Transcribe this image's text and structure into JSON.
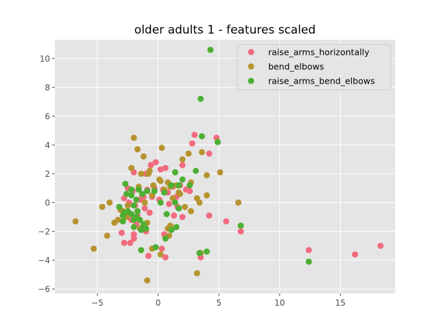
{
  "chart_data": {
    "type": "scatter",
    "title": "older adults 1 - features scaled",
    "xlabel": "",
    "ylabel": "",
    "xlim": [
      -8.5,
      19.5
    ],
    "ylim": [
      -6.3,
      11.3
    ],
    "xticks": [
      -5,
      0,
      5,
      10,
      15
    ],
    "yticks": [
      -6,
      -4,
      -2,
      0,
      2,
      4,
      6,
      8,
      10
    ],
    "xtick_labels": [
      "−5",
      "0",
      "5",
      "10",
      "15"
    ],
    "ytick_labels": [
      "−6",
      "−4",
      "−2",
      "0",
      "2",
      "4",
      "6",
      "8",
      "10"
    ],
    "grid": true,
    "legend_position": "top-right",
    "series": [
      {
        "name": "raise_arms_horizontally",
        "color": "#f26b7e",
        "points": [
          [
            -2.0,
            2.1
          ],
          [
            -1.0,
            2.0
          ],
          [
            -0.6,
            2.6
          ],
          [
            -0.2,
            2.8
          ],
          [
            0.2,
            2.3
          ],
          [
            0.6,
            2.4
          ],
          [
            -2.5,
            1.0
          ],
          [
            -2.1,
            0.8
          ],
          [
            -1.6,
            1.0
          ],
          [
            -1.3,
            0.5
          ],
          [
            -0.9,
            0.9
          ],
          [
            -0.5,
            0.4
          ],
          [
            -2.8,
            0.3
          ],
          [
            -2.4,
            0.0
          ],
          [
            -1.9,
            -0.2
          ],
          [
            -1.5,
            0.2
          ],
          [
            -1.1,
            -0.4
          ],
          [
            -0.7,
            -0.7
          ],
          [
            -2.6,
            -0.9
          ],
          [
            -2.2,
            -1.2
          ],
          [
            -1.8,
            -1.5
          ],
          [
            -1.4,
            -1.8
          ],
          [
            -1.0,
            -2.0
          ],
          [
            -2.0,
            -2.2
          ],
          [
            -2.0,
            -2.5
          ],
          [
            -2.3,
            -2.8
          ],
          [
            -2.8,
            -2.8
          ],
          [
            -3.0,
            -2.1
          ],
          [
            -0.8,
            -3.7
          ],
          [
            0.6,
            -3.8
          ],
          [
            0.3,
            -3.2
          ],
          [
            0.5,
            -2.2
          ],
          [
            1.0,
            -1.6
          ],
          [
            1.3,
            -0.9
          ],
          [
            1.6,
            -0.3
          ],
          [
            2.0,
            -1.0
          ],
          [
            0.8,
            0.7
          ],
          [
            1.2,
            1.1
          ],
          [
            1.8,
            1.2
          ],
          [
            2.3,
            0.9
          ],
          [
            1.5,
            0.4
          ],
          [
            0.1,
            0.2
          ],
          [
            2.0,
            2.6
          ],
          [
            2.8,
            4.1
          ],
          [
            3.0,
            4.7
          ],
          [
            4.2,
            3.4
          ],
          [
            4.8,
            4.5
          ],
          [
            3.5,
            -3.8
          ],
          [
            4.2,
            -0.9
          ],
          [
            5.6,
            -1.3
          ],
          [
            6.8,
            -2.0
          ],
          [
            12.4,
            -3.3
          ],
          [
            16.2,
            -3.6
          ],
          [
            18.3,
            -3.0
          ],
          [
            -1.2,
            0.4
          ],
          [
            -0.3,
            1.0
          ],
          [
            0.9,
            -0.1
          ],
          [
            -1.7,
            -0.9
          ],
          [
            2.6,
            0.8
          ],
          [
            0.4,
            0.9
          ]
        ]
      },
      {
        "name": "bend_elbows",
        "color": "#b6932e",
        "points": [
          [
            -6.8,
            -1.3
          ],
          [
            -5.3,
            -3.2
          ],
          [
            -4.6,
            -0.3
          ],
          [
            -4.2,
            -2.3
          ],
          [
            -4.0,
            0.0
          ],
          [
            -3.6,
            -1.4
          ],
          [
            -3.3,
            -1.2
          ],
          [
            -2.9,
            -0.6
          ],
          [
            -2.5,
            -0.2
          ],
          [
            -2.2,
            2.4
          ],
          [
            -2.0,
            4.5
          ],
          [
            -1.7,
            3.7
          ],
          [
            -1.4,
            2.0
          ],
          [
            -1.2,
            3.2
          ],
          [
            -0.8,
            2.0
          ],
          [
            -0.7,
            2.2
          ],
          [
            -0.4,
            1.2
          ],
          [
            0.2,
            1.5
          ],
          [
            0.3,
            3.8
          ],
          [
            0.5,
            0.9
          ],
          [
            0.8,
            1.4
          ],
          [
            1.0,
            1.1
          ],
          [
            1.5,
            1.2
          ],
          [
            1.7,
            0.7
          ],
          [
            2.0,
            3.0
          ],
          [
            2.5,
            3.4
          ],
          [
            2.7,
            1.4
          ],
          [
            3.2,
            0.3
          ],
          [
            3.6,
            3.5
          ],
          [
            4.0,
            1.9
          ],
          [
            4.0,
            0.5
          ],
          [
            5.1,
            2.1
          ],
          [
            3.4,
            0.0
          ],
          [
            3.5,
            -3.5
          ],
          [
            3.2,
            -4.9
          ],
          [
            -0.9,
            -5.4
          ],
          [
            -0.5,
            -3.2
          ],
          [
            0.2,
            -3.6
          ],
          [
            0.9,
            -2.3
          ],
          [
            1.0,
            -1.6
          ],
          [
            0.8,
            -1.8
          ],
          [
            2.2,
            -0.3
          ],
          [
            2.7,
            -0.6
          ],
          [
            -1.5,
            -1.8
          ],
          [
            -0.9,
            -1.4
          ],
          [
            -1.1,
            0.0
          ],
          [
            -2.6,
            -1.0
          ],
          [
            -3.1,
            -0.5
          ],
          [
            6.6,
            0.0
          ],
          [
            0.1,
            1.6
          ],
          [
            -1.6,
            1.1
          ],
          [
            -0.5,
            0.5
          ],
          [
            1.2,
            0.3
          ],
          [
            1.8,
            0.6
          ]
        ]
      },
      {
        "name": "raise_arms_bend_elbows",
        "color": "#4caf32",
        "points": [
          [
            4.3,
            10.6
          ],
          [
            3.5,
            7.2
          ],
          [
            3.6,
            4.6
          ],
          [
            4.9,
            4.2
          ],
          [
            3.1,
            2.2
          ],
          [
            2.6,
            1.2
          ],
          [
            1.4,
            2.1
          ],
          [
            2.0,
            1.6
          ],
          [
            1.1,
            1.2
          ],
          [
            1.7,
            1.2
          ],
          [
            0.5,
            0.7
          ],
          [
            1.4,
            0.0
          ],
          [
            0.2,
            0.0
          ],
          [
            0.7,
            -0.8
          ],
          [
            1.7,
            -0.4
          ],
          [
            1.1,
            -1.9
          ],
          [
            1.5,
            -1.7
          ],
          [
            0.6,
            -2.5
          ],
          [
            -0.2,
            -3.1
          ],
          [
            -1.4,
            -3.3
          ],
          [
            -1.4,
            -1.9
          ],
          [
            -1.2,
            -1.5
          ],
          [
            -1.0,
            -1.8
          ],
          [
            -1.5,
            -1.2
          ],
          [
            -1.8,
            -1.0
          ],
          [
            -2.0,
            -1.2
          ],
          [
            -2.2,
            -0.8
          ],
          [
            -2.8,
            -0.7
          ],
          [
            -2.9,
            -1.3
          ],
          [
            -3.2,
            -0.3
          ],
          [
            -2.9,
            -0.9
          ],
          [
            -2.5,
            -0.6
          ],
          [
            -2.2,
            0.5
          ],
          [
            -2.6,
            0.6
          ],
          [
            -2.2,
            0.9
          ],
          [
            -2.7,
            1.3
          ],
          [
            -1.8,
            0.2
          ],
          [
            -2.0,
            -0.2
          ],
          [
            -1.7,
            -0.6
          ],
          [
            -1.3,
            0.6
          ],
          [
            -0.9,
            0.8
          ],
          [
            -0.3,
            0.8
          ],
          [
            3.4,
            -3.5
          ],
          [
            4.0,
            -3.4
          ],
          [
            6.8,
            -1.6
          ],
          [
            12.4,
            -4.1
          ],
          [
            -2.0,
            -1.7
          ],
          [
            -1.6,
            0.9
          ]
        ]
      }
    ]
  }
}
